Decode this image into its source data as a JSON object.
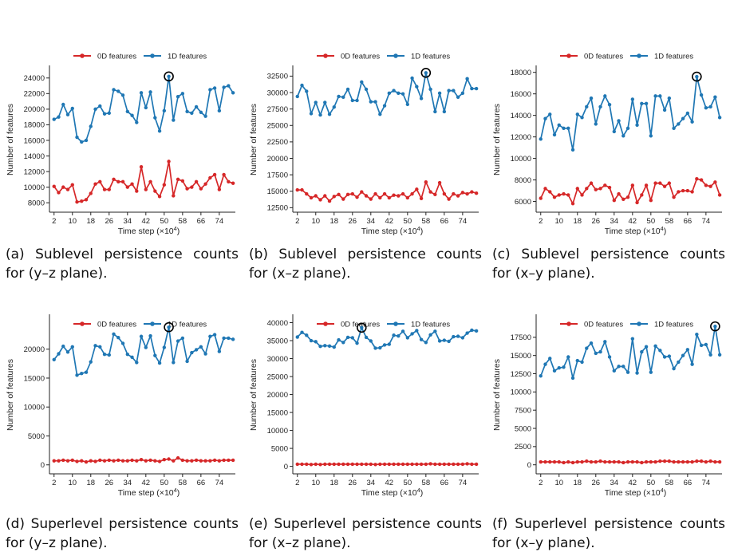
{
  "colors": {
    "series0": "#d62728",
    "series1": "#1f77b4",
    "axis": "#222222"
  },
  "xlabel": "Time step (×10",
  "xlabel_sup": "4",
  "xlabel_end": ")",
  "ylabel": "Number of features",
  "legend": [
    "0D features",
    "1D features"
  ],
  "panels": [
    {
      "tag": "(a)",
      "text": "Sublevel persistence counts for (y–z plane)."
    },
    {
      "tag": "(b)",
      "text": "Sublevel persistence counts for (x–z plane)."
    },
    {
      "tag": "(c)",
      "text": "Sublevel persistence counts for (x–y plane)."
    },
    {
      "tag": "(d)",
      "text": "Superlevel persistence counts for (y–z plane)."
    },
    {
      "tag": "(e)",
      "text": "Superlevel persistence counts for (x–z plane)."
    },
    {
      "tag": "(f)",
      "text": "Superlevel persistence counts for (x–y plane)."
    }
  ],
  "chart_data": [
    {
      "type": "line",
      "x": [
        2,
        4,
        6,
        8,
        10,
        12,
        14,
        16,
        18,
        20,
        22,
        24,
        26,
        28,
        30,
        32,
        34,
        36,
        38,
        40,
        42,
        44,
        46,
        48,
        50,
        52,
        54,
        56,
        58,
        60,
        62,
        64,
        66,
        68,
        70,
        72,
        74,
        76,
        78,
        80
      ],
      "xticks": [
        2,
        10,
        18,
        26,
        34,
        42,
        50,
        58,
        66,
        74
      ],
      "yticks": [
        8000,
        10000,
        12000,
        14000,
        16000,
        18000,
        20000,
        22000,
        24000
      ],
      "ylim": [
        7200,
        25000
      ],
      "xlabel": "Time step (×10⁴)",
      "ylabel": "Number of features",
      "legend_position": "top-center",
      "highlight_index": 25,
      "series": [
        {
          "name": "0D features",
          "values": [
            10100,
            9300,
            10000,
            9700,
            10300,
            8100,
            8200,
            8400,
            9200,
            10400,
            10700,
            9700,
            9700,
            11000,
            10700,
            10700,
            10000,
            10400,
            9500,
            12600,
            9700,
            10700,
            9500,
            8800,
            10300,
            13300,
            8900,
            11000,
            10800,
            9800,
            10000,
            10700,
            9800,
            10400,
            11200,
            11600,
            9700,
            11600,
            10700,
            10500
          ]
        },
        {
          "name": "1D features",
          "values": [
            18700,
            19000,
            20600,
            19300,
            20100,
            16400,
            15800,
            16000,
            17800,
            20000,
            20400,
            19400,
            19500,
            22500,
            22300,
            21800,
            19700,
            19200,
            18300,
            22100,
            20200,
            22200,
            18900,
            17200,
            19800,
            24200,
            18600,
            21600,
            22000,
            19700,
            19500,
            20300,
            19600,
            19100,
            22500,
            22700,
            19800,
            22800,
            23000,
            22100
          ]
        }
      ]
    },
    {
      "type": "line",
      "x": [
        2,
        4,
        6,
        8,
        10,
        12,
        14,
        16,
        18,
        20,
        22,
        24,
        26,
        28,
        30,
        32,
        34,
        36,
        38,
        40,
        42,
        44,
        46,
        48,
        50,
        52,
        54,
        56,
        58,
        60,
        62,
        64,
        66,
        68,
        70,
        72,
        74,
        76,
        78,
        80
      ],
      "xticks": [
        2,
        10,
        18,
        26,
        34,
        42,
        50,
        58,
        66,
        74
      ],
      "yticks": [
        12500,
        15000,
        17500,
        20000,
        22500,
        25000,
        27500,
        30000,
        32500
      ],
      "ylim": [
        12300,
        33400
      ],
      "xlabel": "Time step (×10⁴)",
      "ylabel": "Number of features",
      "legend_position": "top-center",
      "highlight_index": 28,
      "series": [
        {
          "name": "0D features",
          "values": [
            15200,
            15200,
            14600,
            14000,
            14300,
            13700,
            14300,
            13500,
            14200,
            14500,
            13800,
            14500,
            14600,
            14100,
            14900,
            14300,
            13800,
            14600,
            14000,
            14600,
            14000,
            14400,
            14300,
            14600,
            14000,
            14600,
            15300,
            13900,
            16400,
            14900,
            14500,
            16300,
            14600,
            13800,
            14600,
            14300,
            14800,
            14600,
            14900,
            14700
          ]
        },
        {
          "name": "1D features",
          "values": [
            29400,
            31100,
            30200,
            26800,
            28500,
            26600,
            28500,
            26700,
            27800,
            29400,
            29300,
            30500,
            28800,
            28800,
            31600,
            30500,
            28600,
            28600,
            26700,
            28000,
            29900,
            30300,
            29900,
            29800,
            28200,
            32200,
            30900,
            29100,
            33000,
            30500,
            27100,
            29900,
            27100,
            30300,
            30300,
            29300,
            29900,
            32100,
            30600,
            30600
          ]
        }
      ]
    },
    {
      "type": "line",
      "x": [
        2,
        4,
        6,
        8,
        10,
        12,
        14,
        16,
        18,
        20,
        22,
        24,
        26,
        28,
        30,
        32,
        34,
        36,
        38,
        40,
        42,
        44,
        46,
        48,
        50,
        52,
        54,
        56,
        58,
        60,
        62,
        64,
        66,
        68,
        70,
        72,
        74,
        76,
        78,
        80
      ],
      "xticks": [
        2,
        10,
        18,
        26,
        34,
        42,
        50,
        58,
        66,
        74
      ],
      "yticks": [
        6000,
        8000,
        10000,
        12000,
        14000,
        16000,
        18000
      ],
      "ylim": [
        5300,
        18200
      ],
      "xlabel": "Time step (×10⁴)",
      "ylabel": "Number of features",
      "legend_position": "top-center",
      "highlight_index": 34,
      "series": [
        {
          "name": "0D features",
          "values": [
            6300,
            7200,
            6900,
            6400,
            6600,
            6700,
            6600,
            5800,
            7200,
            6600,
            7200,
            7700,
            7100,
            7200,
            7500,
            7300,
            6100,
            6700,
            6200,
            6400,
            7500,
            5900,
            6600,
            7500,
            6100,
            7700,
            7700,
            7400,
            7700,
            6400,
            6900,
            7000,
            7000,
            6900,
            8100,
            8000,
            7500,
            7400,
            7800,
            6600
          ]
        },
        {
          "name": "1D features",
          "values": [
            11800,
            13700,
            14100,
            12200,
            13100,
            12800,
            12800,
            10800,
            14100,
            13800,
            14800,
            15600,
            13200,
            14800,
            15800,
            15000,
            12500,
            13500,
            12100,
            12800,
            15500,
            13100,
            15100,
            15100,
            12100,
            15800,
            15800,
            14500,
            15600,
            12800,
            13200,
            13700,
            14200,
            13400,
            17600,
            15900,
            14700,
            14800,
            15700,
            13800
          ]
        }
      ]
    },
    {
      "type": "line",
      "x": [
        2,
        4,
        6,
        8,
        10,
        12,
        14,
        16,
        18,
        20,
        22,
        24,
        26,
        28,
        30,
        32,
        34,
        36,
        38,
        40,
        42,
        44,
        46,
        48,
        50,
        52,
        54,
        56,
        58,
        60,
        62,
        64,
        66,
        68,
        70,
        72,
        74,
        76,
        78,
        80
      ],
      "xticks": [
        2,
        10,
        18,
        26,
        34,
        42,
        50,
        58,
        66,
        74
      ],
      "yticks": [
        0,
        5000,
        10000,
        15000,
        20000
      ],
      "ylim": [
        -1000,
        25200
      ],
      "xlabel": "Time step (×10⁴)",
      "ylabel": "Number of features",
      "legend_position": "top-center",
      "highlight_index": 25,
      "series": [
        {
          "name": "0D features",
          "values": [
            700,
            700,
            800,
            700,
            800,
            600,
            700,
            500,
            700,
            600,
            800,
            700,
            800,
            700,
            800,
            700,
            700,
            800,
            700,
            900,
            700,
            800,
            700,
            600,
            900,
            1000,
            700,
            1200,
            800,
            700,
            700,
            800,
            700,
            700,
            700,
            800,
            700,
            800,
            800,
            800
          ]
        },
        {
          "name": "1D features",
          "values": [
            18200,
            19200,
            20500,
            19500,
            20400,
            15500,
            15800,
            16000,
            17800,
            20600,
            20400,
            19100,
            19000,
            22600,
            22000,
            21000,
            19100,
            18600,
            17700,
            22200,
            20300,
            22300,
            18900,
            17600,
            20300,
            23800,
            17700,
            21400,
            21900,
            17900,
            19400,
            19900,
            20400,
            19200,
            22200,
            22500,
            19600,
            21900,
            21900,
            21700
          ]
        }
      ]
    },
    {
      "type": "line",
      "x": [
        2,
        4,
        6,
        8,
        10,
        12,
        14,
        16,
        18,
        20,
        22,
        24,
        26,
        28,
        30,
        32,
        34,
        36,
        38,
        40,
        42,
        44,
        46,
        48,
        50,
        52,
        54,
        56,
        58,
        60,
        62,
        64,
        66,
        68,
        70,
        72,
        74,
        76,
        78,
        80
      ],
      "xticks": [
        2,
        10,
        18,
        26,
        34,
        42,
        50,
        58,
        66,
        74
      ],
      "yticks": [
        0,
        5000,
        10000,
        15000,
        20000,
        25000,
        30000,
        35000,
        40000
      ],
      "ylim": [
        -1200,
        41000
      ],
      "xlabel": "Time step (×10⁴)",
      "ylabel": "Number of features",
      "legend_position": "top-center",
      "highlight_index": 14,
      "series": [
        {
          "name": "0D features",
          "values": [
            600,
            600,
            600,
            500,
            600,
            500,
            600,
            600,
            600,
            600,
            600,
            600,
            600,
            600,
            600,
            600,
            600,
            500,
            600,
            600,
            600,
            600,
            600,
            600,
            600,
            600,
            600,
            600,
            600,
            700,
            600,
            600,
            600,
            600,
            600,
            600,
            600,
            700,
            600,
            600
          ]
        },
        {
          "name": "1D features",
          "values": [
            36000,
            37300,
            36500,
            35000,
            34700,
            33400,
            33600,
            33500,
            33200,
            35200,
            34500,
            35900,
            35800,
            34300,
            38600,
            35900,
            34900,
            32900,
            33000,
            33800,
            34000,
            36500,
            36300,
            37600,
            35800,
            36900,
            37800,
            35300,
            34500,
            36600,
            37600,
            34900,
            35100,
            34800,
            36100,
            36200,
            35800,
            37100,
            37900,
            37700
          ]
        }
      ]
    },
    {
      "type": "line",
      "x": [
        2,
        4,
        6,
        8,
        10,
        12,
        14,
        16,
        18,
        20,
        22,
        24,
        26,
        28,
        30,
        32,
        34,
        36,
        38,
        40,
        42,
        44,
        46,
        48,
        50,
        52,
        54,
        56,
        58,
        60,
        62,
        64,
        66,
        68,
        70,
        72,
        74,
        76,
        78,
        80
      ],
      "xticks": [
        2,
        10,
        18,
        26,
        34,
        42,
        50,
        58,
        66,
        74
      ],
      "yticks": [
        0,
        2500,
        5000,
        7500,
        10000,
        12500,
        15000,
        17500
      ],
      "ylim": [
        -800,
        20000
      ],
      "xlabel": "Time step (×10⁴)",
      "ylabel": "Number of features",
      "legend_position": "top-center",
      "highlight_index": 38,
      "series": [
        {
          "name": "0D features",
          "values": [
            400,
            400,
            400,
            400,
            400,
            300,
            400,
            300,
            400,
            400,
            500,
            400,
            400,
            500,
            400,
            400,
            400,
            400,
            300,
            400,
            400,
            400,
            300,
            400,
            400,
            400,
            500,
            500,
            500,
            400,
            400,
            400,
            400,
            400,
            500,
            500,
            400,
            500,
            400,
            400
          ]
        },
        {
          "name": "1D features",
          "values": [
            12200,
            13800,
            14600,
            12900,
            13300,
            13400,
            14800,
            11900,
            14300,
            14100,
            16000,
            16700,
            15300,
            15500,
            16900,
            14800,
            12900,
            13500,
            13500,
            12700,
            17300,
            12600,
            15500,
            16200,
            12700,
            16300,
            15700,
            14800,
            14900,
            13200,
            14100,
            15000,
            15800,
            13800,
            17900,
            16400,
            16500,
            15100,
            19000,
            15100
          ]
        }
      ]
    }
  ]
}
